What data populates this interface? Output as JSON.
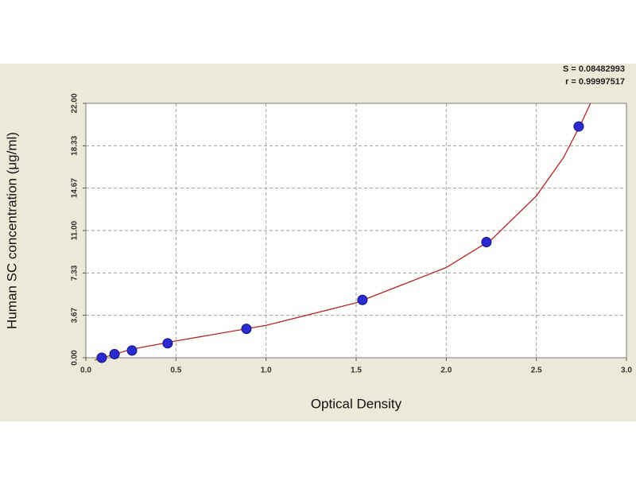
{
  "chart_data": {
    "type": "scatter",
    "x_label": "Optical Density",
    "y_label": "Human SC concentration (μg/ml)",
    "annotations": [
      "S = 0.08482993",
      "r = 0.99997517"
    ],
    "points": {
      "x": [
        0.088,
        0.159,
        0.256,
        0.454,
        0.891,
        1.535,
        2.223,
        2.735
      ],
      "y": [
        0,
        0.3125,
        0.625,
        1.25,
        2.5,
        5,
        10,
        20
      ],
      "color": "#2a2ad0"
    },
    "fit": {
      "x": [
        0.05,
        0.25,
        0.5,
        1.0,
        1.5,
        2.0,
        2.25,
        2.5,
        2.65,
        2.75,
        2.8
      ],
      "y": [
        -0.2,
        0.72,
        1.45,
        2.8,
        4.75,
        7.8,
        10.2,
        14.0,
        17.3,
        20.3,
        22.0
      ],
      "color": "#b02828"
    },
    "xlim": [
      0,
      3
    ],
    "ylim": [
      0,
      22
    ],
    "xticks": [
      {
        "value": 0,
        "label": "0.0"
      },
      0.5,
      {
        "value": 1,
        "label": "1.0"
      },
      1.5,
      {
        "value": 2,
        "label": "2.0"
      },
      2.5,
      {
        "value": 3,
        "label": "3.0"
      }
    ],
    "yticks": [
      {
        "value": 0,
        "label": "0.00"
      },
      3.67,
      7.33,
      {
        "value": 11,
        "label": "11.00"
      },
      14.67,
      18.33,
      {
        "value": 22,
        "label": "22.00"
      }
    ],
    "grid": true
  }
}
